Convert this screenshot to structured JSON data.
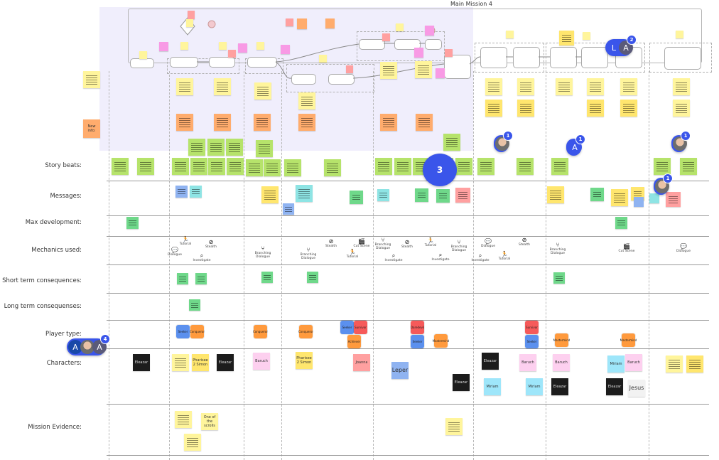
{
  "board_title": "Main Mission 4",
  "colors": {
    "yellow": "#fff59c",
    "yellow_dark": "#ffe66e",
    "orange": "#ffac6d",
    "green": "#b6e36b",
    "green_dark": "#6fd88a",
    "blue": "#8fb3f1",
    "teal": "#8ee4e4",
    "pink": "#fdd0ef",
    "red": "#ffa0a0",
    "magenta": "#f89ae5",
    "black": "#1c1c1c",
    "cyan": "#9ee6fa",
    "white": "#f2f2f2",
    "tag_blue": "#5b90ee",
    "tag_orange": "#ff9a3d",
    "tag_red": "#f65a5a",
    "accent": "#3a55ea"
  },
  "rows": [
    {
      "label": "Story beats:"
    },
    {
      "label": "Messages:"
    },
    {
      "label": "Max development:"
    },
    {
      "label": "Mechanics used:"
    },
    {
      "label": "Short term consequences:"
    },
    {
      "label": "Long term consequenses:"
    },
    {
      "label": "Player type:"
    },
    {
      "label": "Characters:"
    },
    {
      "label": "Mission Evidence:"
    }
  ],
  "notes": {
    "new_info": "New info:",
    "scrolls": "One of the scrolls",
    "pharisee1": "Pharisee 2 Simon",
    "pharisee2": "Pharisee 2 Simon",
    "eleazar": "Eleazar",
    "baruch": "Baruch",
    "joanna": "Joanna",
    "leper": "Leper",
    "miriam": "Miriam",
    "jesus": "Jesus"
  },
  "player_types": {
    "seeker": "Seeker",
    "conqueror": "Conqueror",
    "survivor": "Survivor",
    "achiever": "Achiever",
    "daredevil": "Daredevil",
    "mastermind": "Mastermind"
  },
  "mechanics": {
    "tutorial": {
      "label": "Tutorial",
      "icon": "running-person-icon"
    },
    "stealth": {
      "label": "Stealth",
      "icon": "eye-slash-icon"
    },
    "branching": {
      "label": "Branching Dialogue",
      "icon": "branch-icon"
    },
    "investigate": {
      "label": "Investigate",
      "icon": "magnifier-icon"
    },
    "cutscene": {
      "label": "Cut Scene",
      "icon": "clapper-icon"
    },
    "dialogue": {
      "label": "Dialogue",
      "icon": "chat-bubbles-icon"
    }
  },
  "collaborators": {
    "count_3": "3",
    "count_1": "1",
    "count_2": "2",
    "count_4": "4",
    "initial_a": "A",
    "initial_l": "L"
  }
}
